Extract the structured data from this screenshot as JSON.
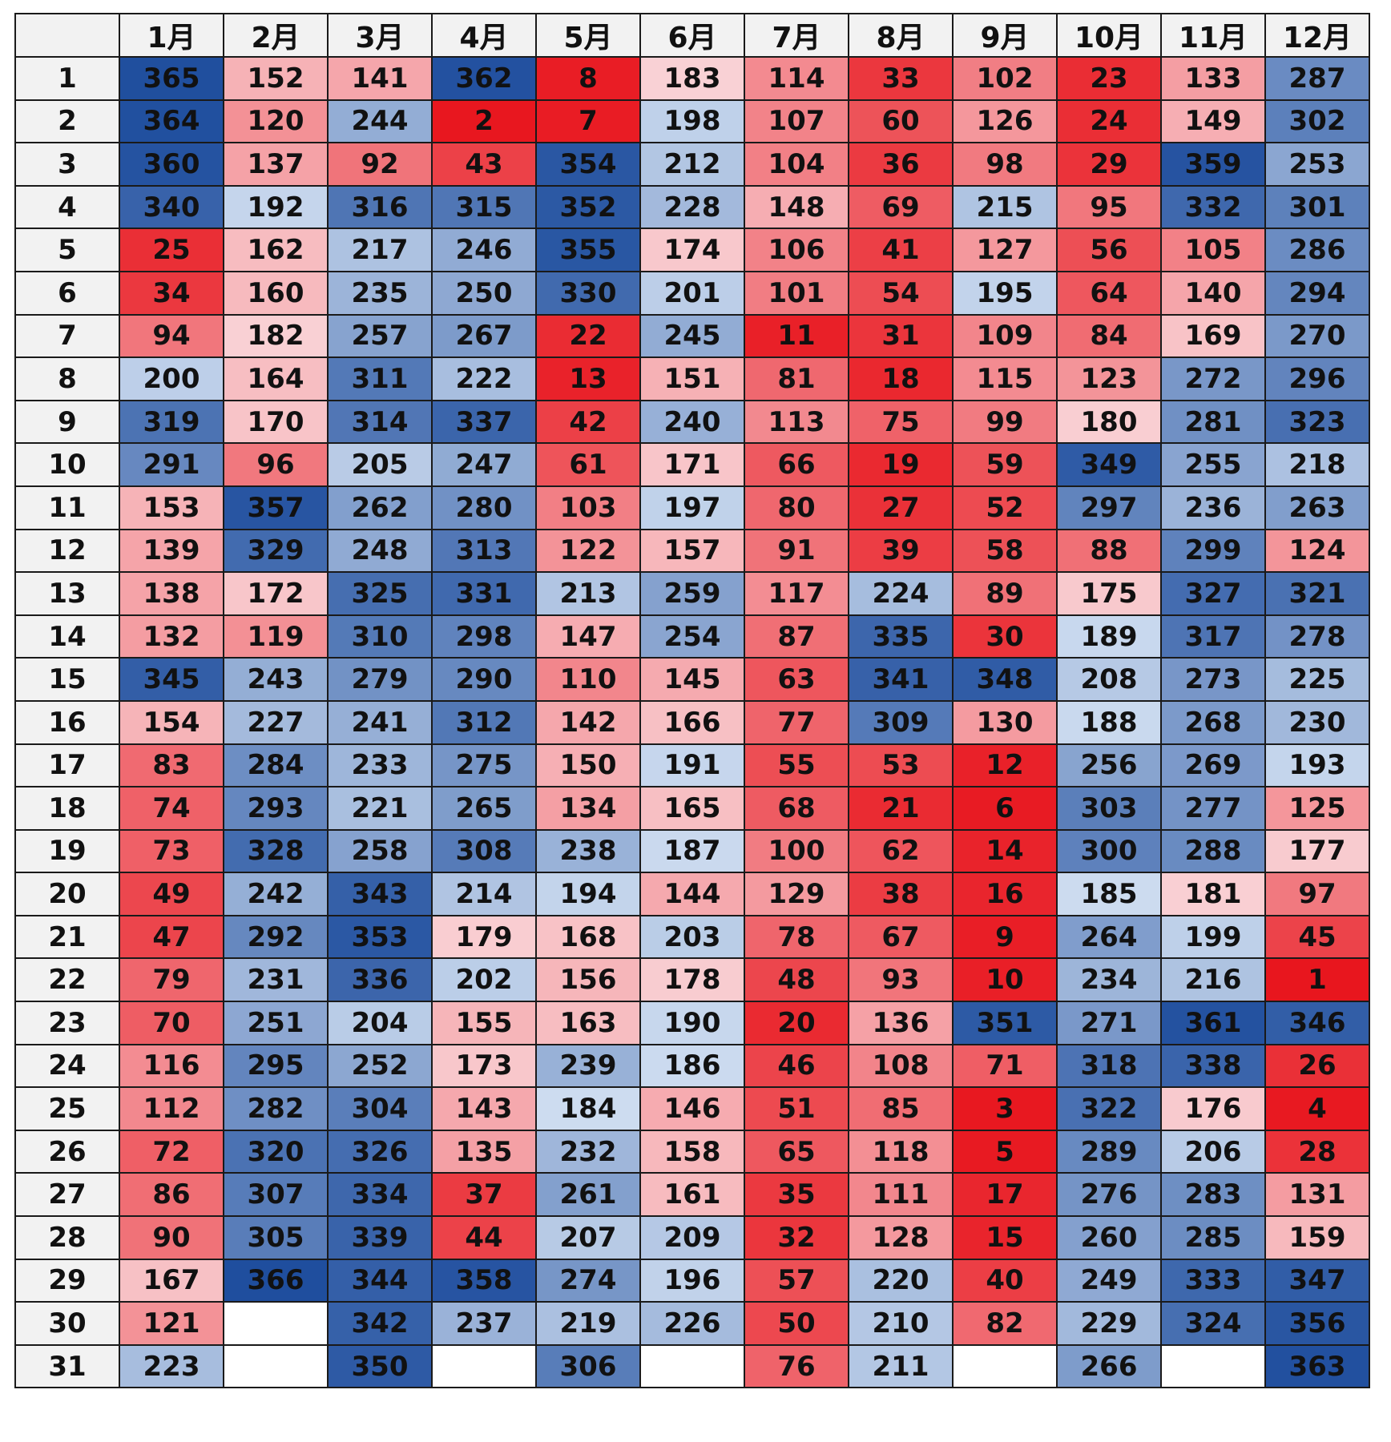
{
  "chart_data": {
    "type": "heatmap",
    "corner_label": "",
    "columns": [
      "1月",
      "2月",
      "3月",
      "4月",
      "5月",
      "6月",
      "7月",
      "8月",
      "9月",
      "10月",
      "11月",
      "12月"
    ],
    "rows": [
      "1",
      "2",
      "3",
      "4",
      "5",
      "6",
      "7",
      "8",
      "9",
      "10",
      "11",
      "12",
      "13",
      "14",
      "15",
      "16",
      "17",
      "18",
      "19",
      "20",
      "21",
      "22",
      "23",
      "24",
      "25",
      "26",
      "27",
      "28",
      "29",
      "30",
      "31"
    ],
    "values": [
      [
        365,
        152,
        141,
        362,
        8,
        183,
        114,
        33,
        102,
        23,
        133,
        287
      ],
      [
        364,
        120,
        244,
        2,
        7,
        198,
        107,
        60,
        126,
        24,
        149,
        302
      ],
      [
        360,
        137,
        92,
        43,
        354,
        212,
        104,
        36,
        98,
        29,
        359,
        253
      ],
      [
        340,
        192,
        316,
        315,
        352,
        228,
        148,
        69,
        215,
        95,
        332,
        301
      ],
      [
        25,
        162,
        217,
        246,
        355,
        174,
        106,
        41,
        127,
        56,
        105,
        286
      ],
      [
        34,
        160,
        235,
        250,
        330,
        201,
        101,
        54,
        195,
        64,
        140,
        294
      ],
      [
        94,
        182,
        257,
        267,
        22,
        245,
        11,
        31,
        109,
        84,
        169,
        270
      ],
      [
        200,
        164,
        311,
        222,
        13,
        151,
        81,
        18,
        115,
        123,
        272,
        296
      ],
      [
        319,
        170,
        314,
        337,
        42,
        240,
        113,
        75,
        99,
        180,
        281,
        323
      ],
      [
        291,
        96,
        205,
        247,
        61,
        171,
        66,
        19,
        59,
        349,
        255,
        218
      ],
      [
        153,
        357,
        262,
        280,
        103,
        197,
        80,
        27,
        52,
        297,
        236,
        263
      ],
      [
        139,
        329,
        248,
        313,
        122,
        157,
        91,
        39,
        58,
        88,
        299,
        124
      ],
      [
        138,
        172,
        325,
        331,
        213,
        259,
        117,
        224,
        89,
        175,
        327,
        321
      ],
      [
        132,
        119,
        310,
        298,
        147,
        254,
        87,
        335,
        30,
        189,
        317,
        278
      ],
      [
        345,
        243,
        279,
        290,
        110,
        145,
        63,
        341,
        348,
        208,
        273,
        225
      ],
      [
        154,
        227,
        241,
        312,
        142,
        166,
        77,
        309,
        130,
        188,
        268,
        230
      ],
      [
        83,
        284,
        233,
        275,
        150,
        191,
        55,
        53,
        12,
        256,
        269,
        193
      ],
      [
        74,
        293,
        221,
        265,
        134,
        165,
        68,
        21,
        6,
        303,
        277,
        125
      ],
      [
        73,
        328,
        258,
        308,
        238,
        187,
        100,
        62,
        14,
        300,
        288,
        177
      ],
      [
        49,
        242,
        343,
        214,
        194,
        144,
        129,
        38,
        16,
        185,
        181,
        97
      ],
      [
        47,
        292,
        353,
        179,
        168,
        203,
        78,
        67,
        9,
        264,
        199,
        45
      ],
      [
        79,
        231,
        336,
        202,
        156,
        178,
        48,
        93,
        10,
        234,
        216,
        1
      ],
      [
        70,
        251,
        204,
        155,
        163,
        190,
        20,
        136,
        351,
        271,
        361,
        346
      ],
      [
        116,
        295,
        252,
        173,
        239,
        186,
        46,
        108,
        71,
        318,
        338,
        26
      ],
      [
        112,
        282,
        304,
        143,
        184,
        146,
        51,
        85,
        3,
        322,
        176,
        4
      ],
      [
        72,
        320,
        326,
        135,
        232,
        158,
        65,
        118,
        5,
        289,
        206,
        28
      ],
      [
        86,
        307,
        334,
        37,
        261,
        161,
        35,
        111,
        17,
        276,
        283,
        131
      ],
      [
        90,
        305,
        339,
        44,
        207,
        209,
        32,
        128,
        15,
        260,
        285,
        159
      ],
      [
        167,
        366,
        344,
        358,
        274,
        196,
        57,
        220,
        40,
        249,
        333,
        347
      ],
      [
        121,
        null,
        342,
        237,
        219,
        226,
        50,
        210,
        82,
        229,
        324,
        356
      ],
      [
        223,
        null,
        350,
        null,
        306,
        null,
        76,
        211,
        null,
        266,
        null,
        363
      ]
    ],
    "value_range": [
      1,
      366
    ],
    "color_scale": {
      "low": "#e8161e",
      "mid_low": "#f9d2d6",
      "mid_high": "#cddcf0",
      "high": "#1f4e9e"
    },
    "legend": "none",
    "grid": true
  }
}
